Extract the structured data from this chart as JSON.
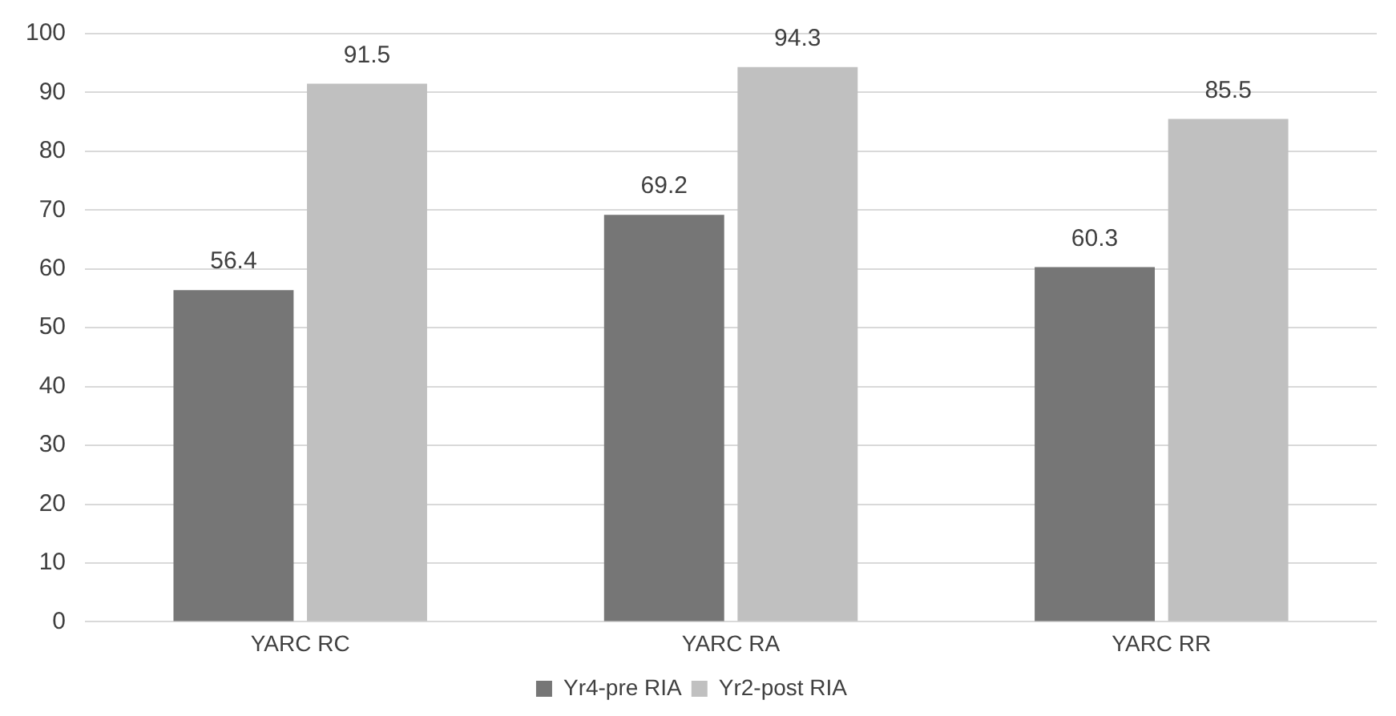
{
  "chart_data": {
    "type": "bar",
    "categories": [
      "YARC RC",
      "YARC RA",
      "YARC RR"
    ],
    "series": [
      {
        "name": "Yr4-pre RIA",
        "color": "#767676",
        "values": [
          56.4,
          69.2,
          60.3
        ]
      },
      {
        "name": "Yr2-post RIA",
        "color": "#c0c0c0",
        "values": [
          91.5,
          94.3,
          85.5
        ]
      }
    ],
    "ylim": [
      0,
      100
    ],
    "yticks": [
      0,
      10,
      20,
      30,
      40,
      50,
      60,
      70,
      80,
      90,
      100
    ],
    "grid": "y",
    "legend": "bottom",
    "data_labels": true
  }
}
